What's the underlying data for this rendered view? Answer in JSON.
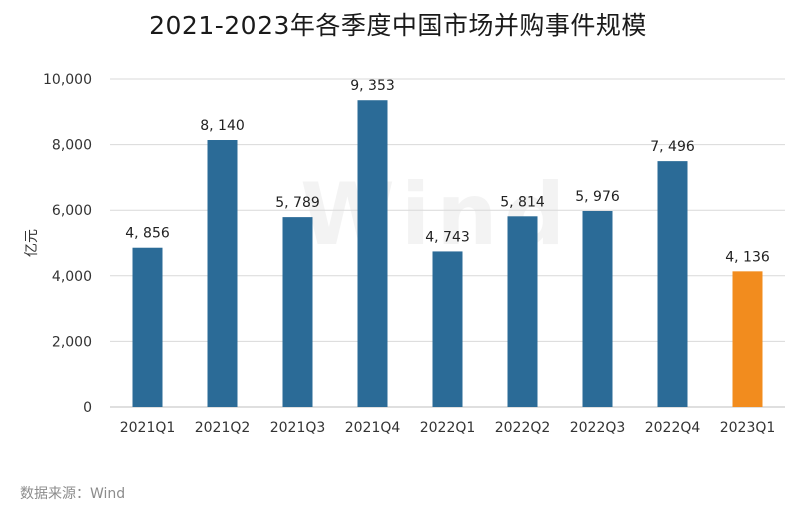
{
  "chart_data": {
    "type": "bar",
    "title": "2021-2023年各季度中国市场并购事件规模",
    "ylabel": "亿元",
    "xlabel": "",
    "categories": [
      "2021Q1",
      "2021Q2",
      "2021Q3",
      "2021Q4",
      "2022Q1",
      "2022Q2",
      "2022Q3",
      "2022Q4",
      "2023Q1"
    ],
    "values": [
      4856,
      8140,
      5789,
      9353,
      4743,
      5814,
      5976,
      7496,
      4136
    ],
    "value_labels": [
      "4, 856",
      "8, 140",
      "5, 789",
      "9, 353",
      "4, 743",
      "5, 814",
      "5, 976",
      "7, 496",
      "4, 136"
    ],
    "ylim": [
      0,
      10000
    ],
    "yticks": [
      0,
      2000,
      4000,
      6000,
      8000,
      10000
    ],
    "ytick_labels": [
      "0",
      "2,000",
      "4,000",
      "6,000",
      "8,000",
      "10,000"
    ],
    "grid": true,
    "legend": "none",
    "colors": {
      "default_bar": "#2b6b97",
      "highlight_bar": "#f28c1e",
      "grid": "#d9d9d9",
      "axis": "#bfbfbf"
    },
    "highlight_index": 8
  },
  "source": "数据来源：Wind",
  "watermark": "Wind"
}
